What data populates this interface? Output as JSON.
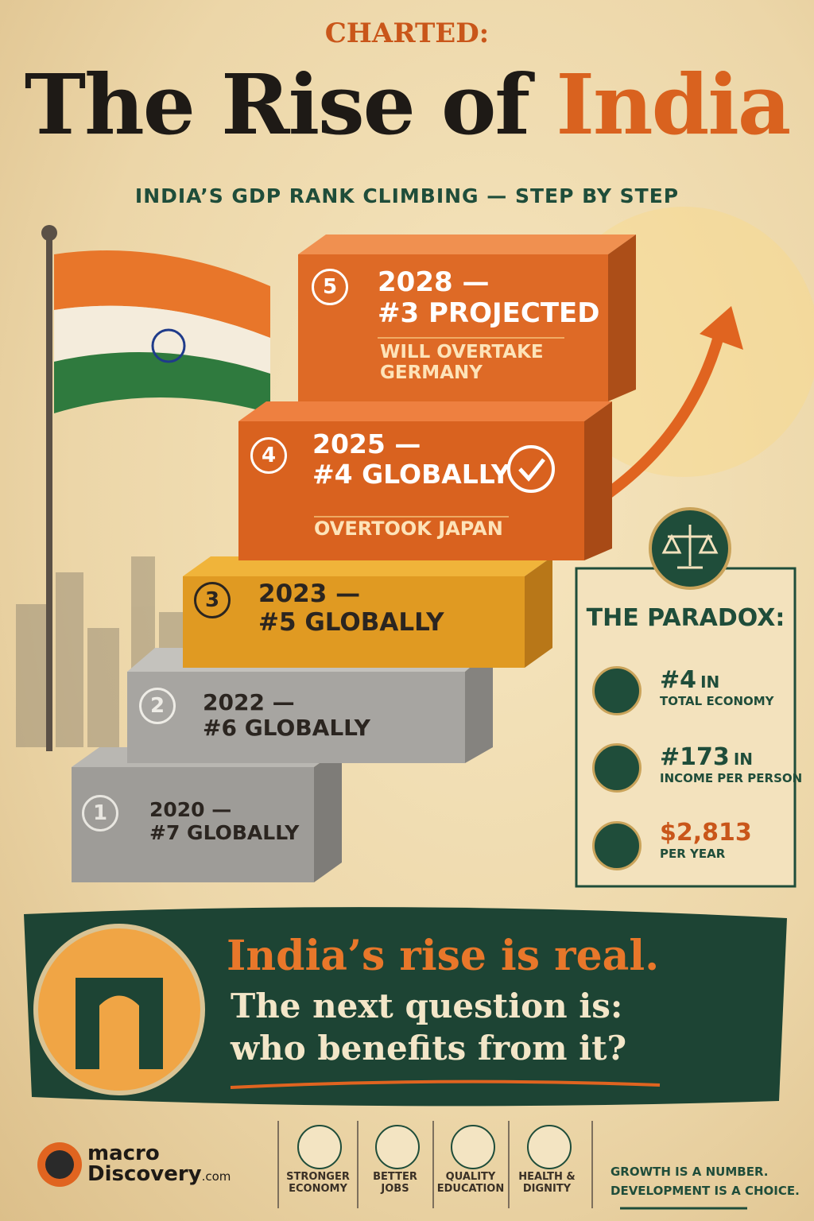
{
  "header": {
    "kicker": "CHARTED:",
    "title_main": "The Rise of",
    "title_accent": "India",
    "subtitle": "INDIA’S GDP RANK CLIMBING — STEP BY STEP"
  },
  "steps": [
    {
      "number": "1",
      "year": "2020 —",
      "rank": "#7 GLOBALLY"
    },
    {
      "number": "2",
      "year": "2022 —",
      "rank": "#6 GLOBALLY"
    },
    {
      "number": "3",
      "year": "2023 —",
      "rank": "#5 GLOBALLY"
    },
    {
      "number": "4",
      "year": "2025 —",
      "rank": "#4 GLOBALLY",
      "note": "OVERTOOK JAPAN"
    },
    {
      "number": "5",
      "year": "2028 —",
      "rank": "#3 PROJECTED",
      "note": "WILL OVERTAKE GERMANY"
    }
  ],
  "paradox": {
    "title": "THE PARADOX:",
    "items": [
      {
        "value": "#4",
        "unit": "IN",
        "label": "TOTAL ECONOMY"
      },
      {
        "value": "#173",
        "unit": "IN",
        "label": "INCOME PER PERSON"
      },
      {
        "value": "$2,813",
        "label": "PER YEAR"
      }
    ]
  },
  "banner": {
    "headline": "India’s rise is real.",
    "line1": "The next question is:",
    "line2": "who benefits from it?"
  },
  "footer": {
    "brand_line1": "macro",
    "brand_line2": "Discovery",
    "brand_suffix": ".com",
    "pillars": [
      "STRONGER ECONOMY",
      "BETTER JOBS",
      "QUALITY EDUCATION",
      "HEALTH & DIGNITY"
    ],
    "tagline_line1": "GROWTH IS A NUMBER.",
    "tagline_line2": "DEVELOPMENT IS A CHOICE."
  }
}
